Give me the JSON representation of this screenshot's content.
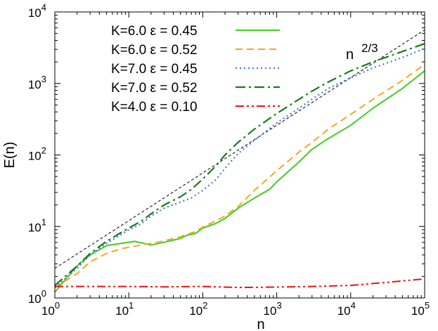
{
  "chart_data": {
    "type": "line",
    "xscale": "log",
    "yscale": "log",
    "xlabel": "n",
    "ylabel": "E(n)",
    "xlim": [
      1,
      100000
    ],
    "ylim": [
      1,
      10000
    ],
    "x_ticks": [
      {
        "value": 1,
        "base": "10",
        "exp": "0"
      },
      {
        "value": 10,
        "base": "10",
        "exp": "1"
      },
      {
        "value": 100,
        "base": "10",
        "exp": "2"
      },
      {
        "value": 1000,
        "base": "10",
        "exp": "3"
      },
      {
        "value": 10000,
        "base": "10",
        "exp": "4"
      },
      {
        "value": 100000,
        "base": "10",
        "exp": "5"
      }
    ],
    "y_ticks": [
      {
        "value": 1,
        "base": "10",
        "exp": "0"
      },
      {
        "value": 10,
        "base": "10",
        "exp": "1"
      },
      {
        "value": 100,
        "base": "10",
        "exp": "2"
      },
      {
        "value": 1000,
        "base": "10",
        "exp": "3"
      },
      {
        "value": 10000,
        "base": "10",
        "exp": "4"
      }
    ],
    "reference_line": {
      "label_base": "n",
      "label_exp": "2/3",
      "color": "#000000",
      "x": [
        1,
        100000
      ],
      "y": [
        2.6,
        5600
      ]
    },
    "series": [
      {
        "name": "K=6.0  ε = 0.45",
        "color": "#44cc22",
        "dash": "",
        "width": 2,
        "x": [
          1,
          1.5,
          2,
          3,
          5,
          8,
          12,
          20,
          30,
          50,
          60,
          80,
          100,
          150,
          200,
          300,
          500,
          800,
          1000,
          2000,
          3000,
          5000,
          10000,
          20000,
          50000,
          100000
        ],
        "y": [
          1.2,
          2.0,
          2.8,
          4.0,
          5.4,
          5.8,
          6.2,
          5.5,
          6.0,
          6.8,
          7.5,
          8.0,
          9.5,
          11,
          13,
          18,
          25,
          33,
          42,
          80,
          120,
          170,
          260,
          450,
          850,
          1500
        ]
      },
      {
        "name": "K=6.0  ε = 0.52",
        "color": "#f5a81c",
        "dash": "10 6",
        "width": 2,
        "x": [
          1,
          2,
          3,
          5,
          8,
          12,
          20,
          30,
          50,
          80,
          100,
          150,
          200,
          300,
          500,
          1000,
          2000,
          3000,
          5000,
          10000,
          20000,
          50000,
          100000
        ],
        "y": [
          1.4,
          2.2,
          3.2,
          4.2,
          4.9,
          5.3,
          5.8,
          6.3,
          7.2,
          8.5,
          9.8,
          12,
          14,
          19,
          32,
          60,
          110,
          150,
          230,
          370,
          600,
          1100,
          1850
        ]
      },
      {
        "name": "K=7.0  ε = 0.45",
        "color": "#4a78d8",
        "dash": "2 4",
        "width": 2.2,
        "x": [
          1,
          2,
          3,
          5,
          8,
          10,
          15,
          20,
          30,
          50,
          70,
          100,
          150,
          200,
          300,
          500,
          1000,
          2000,
          3000,
          5000,
          10000,
          20000,
          50000,
          100000
        ],
        "y": [
          1.4,
          2.6,
          4.0,
          5.8,
          7.8,
          9.0,
          11,
          14,
          18,
          22,
          25,
          32,
          45,
          65,
          105,
          160,
          280,
          450,
          600,
          850,
          1200,
          1650,
          2300,
          3100
        ]
      },
      {
        "name": "K=7.0  ε = 0.52",
        "color": "#1a7a1a",
        "dash": "14 5 3 5",
        "width": 2.2,
        "x": [
          1,
          2,
          3,
          5,
          8,
          10,
          15,
          20,
          30,
          50,
          70,
          100,
          150,
          200,
          300,
          500,
          1000,
          2000,
          3000,
          5000,
          10000,
          20000,
          50000,
          100000
        ],
        "y": [
          1.5,
          2.8,
          4.2,
          6.2,
          8.3,
          9.5,
          12,
          15,
          20,
          26,
          33,
          46,
          70,
          100,
          150,
          230,
          380,
          600,
          780,
          1050,
          1500,
          2000,
          2800,
          3600
        ]
      },
      {
        "name": "K=4.0  ε = 0.10",
        "color": "#ee1111",
        "dash": "12 4 3 4 3 4",
        "width": 2,
        "x": [
          1,
          3,
          10,
          30,
          100,
          300,
          1000,
          3000,
          10000,
          30000,
          100000
        ],
        "y": [
          1.45,
          1.45,
          1.45,
          1.43,
          1.45,
          1.4,
          1.42,
          1.45,
          1.5,
          1.65,
          1.85
        ]
      }
    ]
  }
}
